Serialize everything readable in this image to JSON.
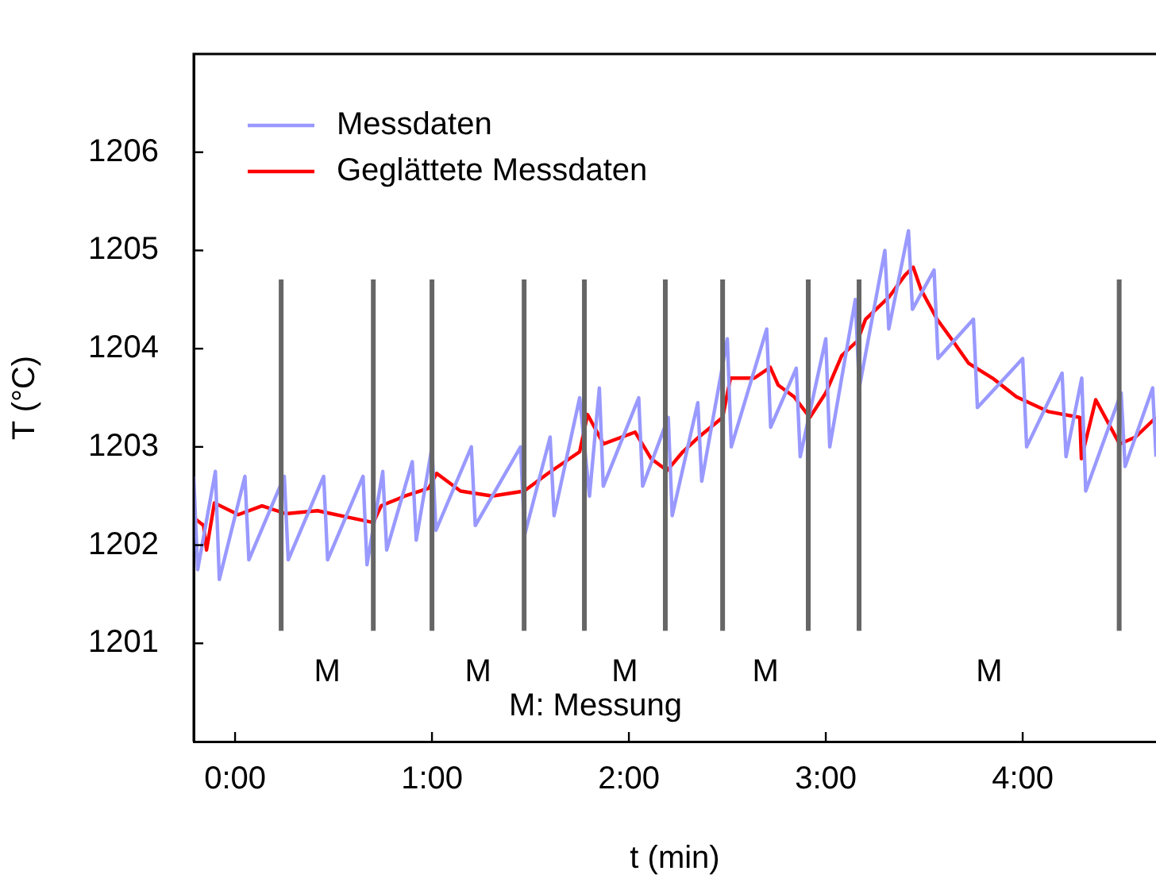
{
  "chart_data": {
    "type": "line",
    "xlabel": "t (min)",
    "ylabel": "T (°C)",
    "xlim": [
      -0.21,
      4.677
    ],
    "xticks": [
      {
        "value": 0,
        "label": "0:00"
      },
      {
        "value": 1,
        "label": "1:00"
      },
      {
        "value": 2,
        "label": "2:00"
      },
      {
        "value": 3,
        "label": "3:00"
      },
      {
        "value": 4,
        "label": "4:00"
      }
    ],
    "ylim": [
      1200,
      1207
    ],
    "yticks": [
      1201,
      1202,
      1203,
      1204,
      1205,
      1206
    ],
    "grid": false,
    "legend": "top left",
    "marker": "none",
    "line_style": "solid",
    "series": [
      {
        "name": "Messdaten",
        "color": "#9999ff",
        "x": [
          -0.21,
          -0.19,
          -0.1,
          -0.08,
          0.05,
          0.07,
          0.25,
          0.27,
          0.45,
          0.47,
          0.65,
          0.67,
          0.75,
          0.77,
          0.9,
          0.92,
          1.0,
          1.02,
          1.2,
          1.22,
          1.45,
          1.47,
          1.6,
          1.62,
          1.75,
          1.8,
          1.85,
          1.87,
          2.05,
          2.07,
          2.2,
          2.22,
          2.35,
          2.37,
          2.5,
          2.52,
          2.7,
          2.72,
          2.85,
          2.87,
          3.0,
          3.02,
          3.15,
          3.17,
          3.3,
          3.32,
          3.42,
          3.44,
          3.55,
          3.57,
          3.75,
          3.77,
          4.0,
          4.02,
          4.2,
          4.22,
          4.3,
          4.32,
          4.5,
          4.52,
          4.66,
          4.677
        ],
        "values": [
          1202.7,
          1201.75,
          1202.75,
          1201.65,
          1202.7,
          1201.85,
          1202.7,
          1201.85,
          1202.7,
          1201.85,
          1202.7,
          1201.8,
          1202.75,
          1201.95,
          1202.85,
          1202.05,
          1203.0,
          1202.15,
          1203.0,
          1202.2,
          1203.0,
          1202.1,
          1203.1,
          1202.3,
          1203.5,
          1202.5,
          1203.6,
          1202.6,
          1203.5,
          1202.6,
          1203.3,
          1202.3,
          1203.45,
          1202.65,
          1204.1,
          1203.0,
          1204.2,
          1203.2,
          1203.8,
          1202.9,
          1204.1,
          1203.0,
          1204.5,
          1203.6,
          1205.0,
          1204.2,
          1205.2,
          1204.4,
          1204.8,
          1203.9,
          1204.3,
          1203.4,
          1203.9,
          1203.0,
          1203.75,
          1202.9,
          1203.7,
          1202.55,
          1203.55,
          1202.8,
          1203.6,
          1202.9
        ]
      },
      {
        "name": "Geglättete Messdaten",
        "color": "#ff0000",
        "x": [
          -0.21,
          -0.16,
          -0.145,
          -0.105,
          0.016,
          0.137,
          0.258,
          0.419,
          0.581,
          0.702,
          0.742,
          0.863,
          0.984,
          1.024,
          1.145,
          1.306,
          1.468,
          1.589,
          1.75,
          1.79,
          1.871,
          2.032,
          2.113,
          2.194,
          2.274,
          2.355,
          2.476,
          2.516,
          2.637,
          2.718,
          2.758,
          2.839,
          2.919,
          3.0,
          3.081,
          3.161,
          3.202,
          3.323,
          3.403,
          3.444,
          3.484,
          3.565,
          3.645,
          3.726,
          3.847,
          3.968,
          4.129,
          4.29,
          4.298,
          4.371,
          4.492,
          4.573,
          4.677
        ],
        "values": [
          1202.28,
          1202.2,
          1201.95,
          1202.43,
          1202.31,
          1202.4,
          1202.32,
          1202.35,
          1202.28,
          1202.23,
          1202.4,
          1202.5,
          1202.58,
          1202.73,
          1202.55,
          1202.5,
          1202.55,
          1202.73,
          1202.95,
          1203.33,
          1203.03,
          1203.15,
          1202.88,
          1202.76,
          1202.95,
          1203.1,
          1203.3,
          1203.7,
          1203.7,
          1203.81,
          1203.63,
          1203.51,
          1203.3,
          1203.55,
          1203.93,
          1204.08,
          1204.3,
          1204.53,
          1204.75,
          1204.83,
          1204.6,
          1204.3,
          1204.08,
          1203.85,
          1203.7,
          1203.51,
          1203.36,
          1203.3,
          1202.88,
          1203.48,
          1203.03,
          1203.1,
          1203.3
        ]
      }
    ],
    "ref_lines": [
      {
        "axis": "x",
        "value": 0.234,
        "color": "#666666"
      },
      {
        "axis": "x",
        "value": 0.702,
        "color": "#666666"
      },
      {
        "axis": "x",
        "value": 1.0,
        "color": "#666666"
      },
      {
        "axis": "x",
        "value": 1.468,
        "color": "#666666"
      },
      {
        "axis": "x",
        "value": 1.774,
        "color": "#666666"
      },
      {
        "axis": "x",
        "value": 2.185,
        "color": "#666666"
      },
      {
        "axis": "x",
        "value": 2.476,
        "color": "#666666"
      },
      {
        "axis": "x",
        "value": 2.911,
        "color": "#666666"
      },
      {
        "axis": "x",
        "value": 3.169,
        "color": "#666666"
      },
      {
        "axis": "x",
        "value": 4.49,
        "color": "#666666"
      }
    ],
    "annotations": [
      "M",
      "M",
      "M",
      "M",
      "M",
      "M: Messung"
    ]
  }
}
